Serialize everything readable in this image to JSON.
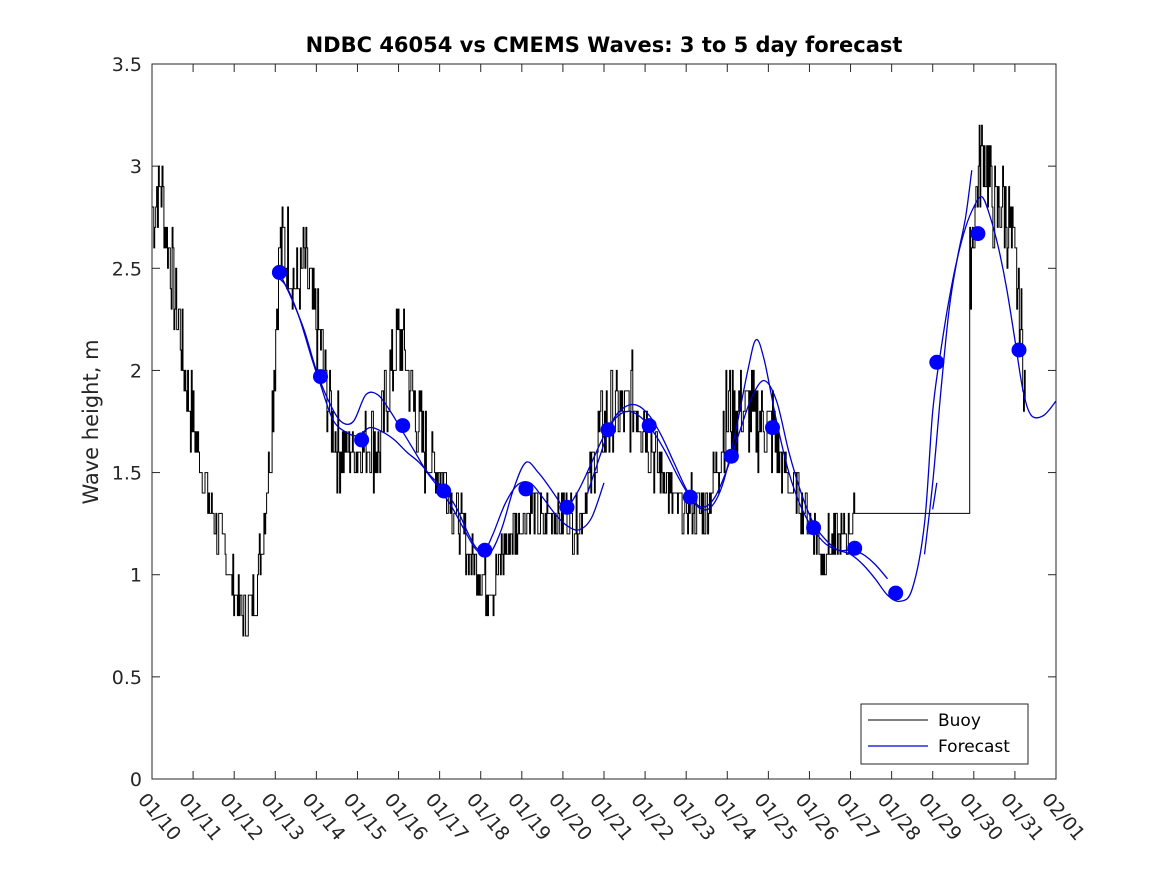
{
  "chart_data": {
    "type": "line",
    "title": "NDBC 46054 vs CMEMS Waves: 3 to 5 day forecast",
    "xlabel": "",
    "ylabel": "Wave height, m",
    "xlim": [
      0,
      22
    ],
    "ylim": [
      0,
      3.5
    ],
    "grid": false,
    "legend_location": "bottom-right",
    "x_ticks": [
      {
        "day": 0,
        "label": "01/10"
      },
      {
        "day": 1,
        "label": "01/11"
      },
      {
        "day": 2,
        "label": "01/12"
      },
      {
        "day": 3,
        "label": "01/13"
      },
      {
        "day": 4,
        "label": "01/14"
      },
      {
        "day": 5,
        "label": "01/15"
      },
      {
        "day": 6,
        "label": "01/16"
      },
      {
        "day": 7,
        "label": "01/17"
      },
      {
        "day": 8,
        "label": "01/18"
      },
      {
        "day": 9,
        "label": "01/19"
      },
      {
        "day": 10,
        "label": "01/20"
      },
      {
        "day": 11,
        "label": "01/21"
      },
      {
        "day": 12,
        "label": "01/22"
      },
      {
        "day": 13,
        "label": "01/23"
      },
      {
        "day": 14,
        "label": "01/24"
      },
      {
        "day": 15,
        "label": "01/25"
      },
      {
        "day": 16,
        "label": "01/26"
      },
      {
        "day": 17,
        "label": "01/27"
      },
      {
        "day": 18,
        "label": "01/28"
      },
      {
        "day": 19,
        "label": "01/29"
      },
      {
        "day": 20,
        "label": "01/30"
      },
      {
        "day": 21,
        "label": "01/31"
      },
      {
        "day": 22,
        "label": "02/01"
      }
    ],
    "y_ticks": [
      {
        "value": 0,
        "label": "0"
      },
      {
        "value": 0.5,
        "label": "0.5"
      },
      {
        "value": 1,
        "label": "1"
      },
      {
        "value": 1.5,
        "label": "1.5"
      },
      {
        "value": 2,
        "label": "2"
      },
      {
        "value": 2.5,
        "label": "2.5"
      },
      {
        "value": 3,
        "label": "3"
      },
      {
        "value": 3.5,
        "label": "3.5"
      }
    ],
    "series": [
      {
        "name": "Buoy",
        "color": "#000000",
        "style": "thin-noisy-line",
        "x": [
          0.0,
          0.2,
          0.4,
          0.6,
          0.8,
          1.0,
          1.2,
          1.4,
          1.6,
          1.8,
          1.9,
          2.1,
          2.3,
          2.5,
          2.7,
          2.9,
          3.1,
          3.3,
          3.5,
          3.7,
          3.9,
          4.1,
          4.3,
          4.5,
          4.7,
          4.9,
          5.1,
          5.3,
          5.5,
          5.7,
          5.9,
          6.1,
          6.3,
          6.5,
          6.7,
          6.9,
          7.1,
          7.3,
          7.5,
          7.7,
          7.9,
          8.1,
          8.3,
          8.5,
          8.7,
          8.9,
          9.1,
          9.3,
          9.5,
          9.7,
          9.9,
          10.1,
          10.3,
          10.5,
          10.7,
          10.9,
          11.1,
          11.3,
          11.5,
          11.7,
          11.9,
          12.1,
          12.3,
          12.5,
          12.7,
          12.9,
          13.1,
          13.3,
          13.5,
          13.7,
          13.9,
          14.1,
          14.3,
          14.5,
          14.7,
          14.9,
          15.1,
          15.3,
          15.5,
          15.7,
          15.9,
          16.1,
          16.3,
          16.5,
          16.7,
          16.9,
          17.1,
          19.9,
          20.05,
          20.15,
          20.25,
          20.4,
          20.55,
          20.7,
          20.85,
          21.0,
          21.15,
          21.25
        ],
        "y": [
          2.8,
          2.9,
          2.6,
          2.3,
          2.0,
          1.75,
          1.5,
          1.35,
          1.2,
          1.1,
          1.0,
          0.85,
          0.8,
          0.9,
          1.2,
          1.7,
          2.6,
          2.6,
          2.4,
          2.5,
          2.3,
          2.1,
          1.85,
          1.65,
          1.6,
          1.6,
          1.6,
          1.7,
          1.6,
          1.85,
          2.1,
          2.15,
          1.9,
          1.7,
          1.6,
          1.5,
          1.5,
          1.35,
          1.25,
          1.1,
          1.05,
          0.95,
          0.95,
          1.1,
          1.15,
          1.25,
          1.3,
          1.3,
          1.25,
          1.3,
          1.3,
          1.3,
          1.25,
          1.35,
          1.5,
          1.7,
          1.75,
          1.8,
          1.75,
          1.85,
          1.8,
          1.7,
          1.55,
          1.45,
          1.35,
          1.3,
          1.35,
          1.3,
          1.35,
          1.5,
          1.75,
          1.8,
          1.8,
          1.8,
          1.75,
          1.75,
          1.7,
          1.55,
          1.45,
          1.4,
          1.3,
          1.2,
          1.1,
          1.15,
          1.15,
          1.2,
          1.3,
          2.5,
          2.85,
          3.0,
          3.1,
          2.9,
          2.75,
          2.85,
          2.7,
          2.5,
          2.2,
          1.85
        ],
        "noise": 0.14
      },
      {
        "name": "Forecast",
        "color": "#0000cc",
        "segments": [
          {
            "x": [
              3.1,
              3.3,
              3.6,
              3.9,
              4.1,
              4.4,
              4.7,
              5.0,
              5.3,
              5.6,
              5.9,
              6.2,
              6.5,
              6.8,
              7.1,
              7.4,
              7.7,
              7.9,
              8.1,
              8.3,
              8.6,
              8.9,
              9.2,
              9.5,
              9.8,
              10.1,
              10.4,
              10.7,
              11.0
            ],
            "y": [
              2.45,
              2.4,
              2.25,
              2.05,
              1.93,
              1.76,
              1.7,
              1.68,
              1.72,
              1.7,
              1.66,
              1.6,
              1.55,
              1.48,
              1.42,
              1.33,
              1.2,
              1.13,
              1.12,
              1.2,
              1.35,
              1.44,
              1.45,
              1.38,
              1.3,
              1.24,
              1.22,
              1.28,
              1.45
            ]
          },
          {
            "x": [
              3.1,
              3.4,
              3.7,
              4.0,
              4.3,
              4.6,
              4.9,
              5.2,
              5.5,
              5.8,
              6.1,
              6.4,
              6.7,
              7.0,
              7.3,
              7.6,
              7.9,
              8.2,
              8.5,
              8.8,
              9.1,
              9.4,
              9.7,
              10.0
            ],
            "y": [
              2.48,
              2.35,
              2.2,
              2.0,
              1.85,
              1.75,
              1.75,
              1.88,
              1.88,
              1.8,
              1.7,
              1.6,
              1.5,
              1.42,
              1.33,
              1.22,
              1.12,
              1.1,
              1.22,
              1.42,
              1.55,
              1.5,
              1.42,
              1.33
            ]
          },
          {
            "x": [
              10.1,
              10.4,
              10.7,
              11.0,
              11.3,
              11.6,
              11.9,
              12.2,
              12.5,
              12.8,
              13.1,
              13.4,
              13.7,
              14.0,
              14.3,
              14.6,
              14.9,
              15.2,
              15.5,
              15.8,
              16.1,
              16.4,
              16.7,
              17.0,
              17.3,
              17.6,
              17.9
            ],
            "y": [
              1.32,
              1.42,
              1.55,
              1.68,
              1.77,
              1.8,
              1.77,
              1.7,
              1.6,
              1.48,
              1.38,
              1.33,
              1.38,
              1.52,
              1.7,
              1.87,
              1.95,
              1.85,
              1.6,
              1.4,
              1.25,
              1.17,
              1.12,
              1.12,
              1.1,
              1.05,
              0.98
            ]
          },
          {
            "x": [
              10.6,
              10.9,
              11.2,
              11.5,
              11.8,
              12.1,
              12.4,
              12.7,
              13.0,
              13.3,
              13.6,
              13.9,
              14.2,
              14.5,
              14.7,
              14.9,
              15.2,
              15.5,
              15.8,
              16.1,
              16.4,
              16.7,
              17.0,
              17.3,
              17.6,
              17.9,
              18.2,
              18.5,
              18.8,
              19.0,
              19.2,
              19.4,
              19.6,
              19.8,
              20.0,
              20.2,
              20.4,
              20.6,
              20.8,
              21.0,
              21.2,
              21.4,
              21.7,
              22.0
            ],
            "y": [
              1.4,
              1.58,
              1.75,
              1.82,
              1.83,
              1.78,
              1.68,
              1.55,
              1.42,
              1.33,
              1.33,
              1.45,
              1.7,
              2.0,
              2.15,
              2.05,
              1.75,
              1.5,
              1.33,
              1.22,
              1.15,
              1.12,
              1.1,
              1.05,
              0.98,
              0.9,
              0.87,
              0.93,
              1.25,
              1.8,
              2.1,
              2.35,
              2.55,
              2.7,
              2.8,
              2.85,
              2.75,
              2.6,
              2.4,
              2.15,
              1.9,
              1.78,
              1.78,
              1.85
            ]
          },
          {
            "x": [
              18.8,
              19.0,
              19.2,
              19.4,
              19.6,
              19.8,
              19.95
            ],
            "y": [
              1.1,
              1.45,
              1.9,
              2.3,
              2.55,
              2.75,
              2.98
            ]
          },
          {
            "x": [
              19.0,
              19.1
            ],
            "y": [
              1.32,
              1.45
            ]
          }
        ],
        "markers": {
          "x": [
            3.1,
            4.1,
            5.1,
            6.1,
            7.1,
            8.1,
            9.1,
            10.1,
            11.1,
            12.1,
            13.1,
            14.1,
            15.1,
            16.1,
            17.1,
            18.1,
            19.1,
            20.1,
            21.1
          ],
          "y": [
            2.48,
            1.97,
            1.66,
            1.73,
            1.41,
            1.12,
            1.42,
            1.33,
            1.71,
            1.73,
            1.38,
            1.58,
            1.72,
            1.23,
            1.13,
            0.91,
            2.04,
            2.67,
            2.1
          ]
        }
      }
    ],
    "legend": [
      {
        "label": "Buoy",
        "color": "#000000"
      },
      {
        "label": "Forecast",
        "color": "#0000cc"
      }
    ]
  }
}
